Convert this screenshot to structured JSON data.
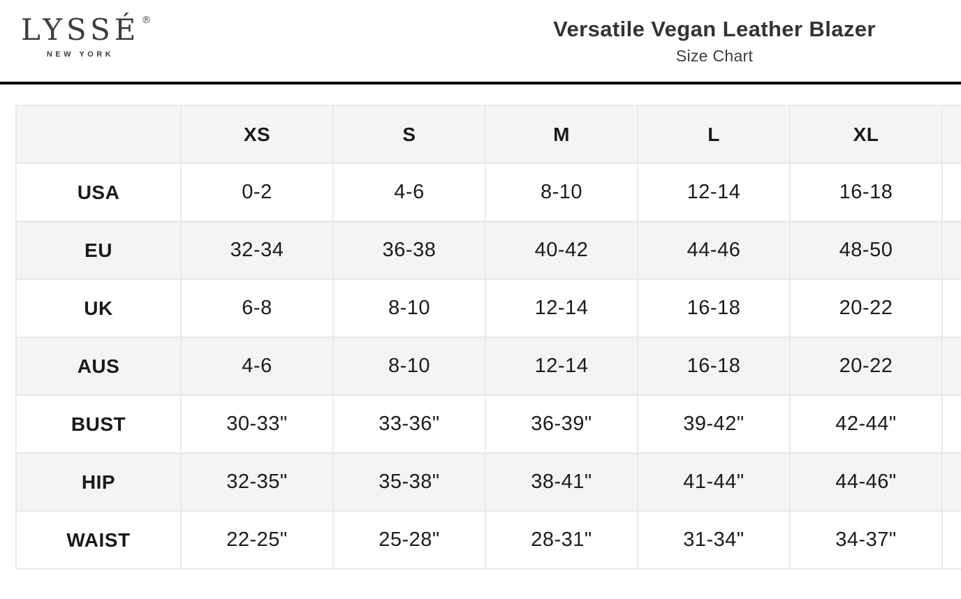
{
  "brand": {
    "logo_text": "LYSSÉ",
    "registered_mark": "®",
    "logo_subtext": "NEW YORK"
  },
  "header": {
    "title": "Versatile Vegan Leather Blazer",
    "subtitle": "Size Chart"
  },
  "colors": {
    "header_rule": "#000000",
    "row_alt_background": "#f4f4f4",
    "cell_border": "#e9e9e9",
    "title_text": "#333333",
    "logo_text": "#3b3b40",
    "cell_text": "#1a1a1a"
  },
  "size_chart": {
    "columns": [
      "",
      "XS",
      "S",
      "M",
      "L",
      "XL"
    ],
    "rows": [
      {
        "label": "USA",
        "values": [
          "0-2",
          "4-6",
          "8-10",
          "12-14",
          "16-18"
        ]
      },
      {
        "label": "EU",
        "values": [
          "32-34",
          "36-38",
          "40-42",
          "44-46",
          "48-50"
        ]
      },
      {
        "label": "UK",
        "values": [
          "6-8",
          "8-10",
          "12-14",
          "16-18",
          "20-22"
        ]
      },
      {
        "label": "AUS",
        "values": [
          "4-6",
          "8-10",
          "12-14",
          "16-18",
          "20-22"
        ]
      },
      {
        "label": "BUST",
        "values": [
          "30-33\"",
          "33-36\"",
          "36-39\"",
          "39-42\"",
          "42-44\""
        ]
      },
      {
        "label": "HIP",
        "values": [
          "32-35\"",
          "35-38\"",
          "38-41\"",
          "41-44\"",
          "44-46\""
        ]
      },
      {
        "label": "WAIST",
        "values": [
          "22-25\"",
          "25-28\"",
          "28-31\"",
          "31-34\"",
          "34-37\""
        ]
      }
    ]
  }
}
